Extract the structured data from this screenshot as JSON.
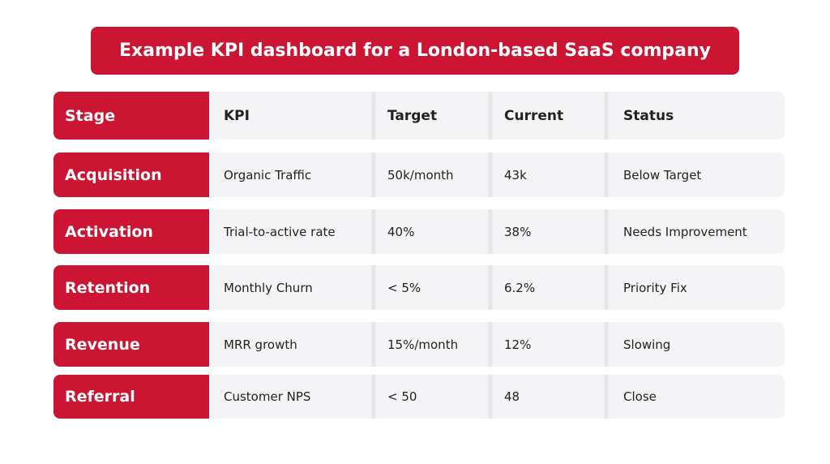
{
  "title": "Example KPI dashboard for a London-based SaaS company",
  "table": {
    "header": [
      "Stage",
      "KPI",
      "Target",
      "Current",
      "Status"
    ],
    "rows": [
      [
        "Acquisition",
        "Organic Traffic",
        "50k/month",
        "43k",
        "Below Target"
      ],
      [
        "Activation",
        "Trial-to-active rate",
        "40%",
        "38%",
        "Needs Improvement"
      ],
      [
        "Retention",
        "Monthly Churn",
        "< 5%",
        "6.2%",
        "Priority Fix"
      ],
      [
        "Revenue",
        "MRR growth",
        "15%/month",
        "12%",
        "Slowing"
      ],
      [
        "Referral",
        "Customer NPS",
        "< 50",
        "48",
        "Close"
      ]
    ]
  }
}
